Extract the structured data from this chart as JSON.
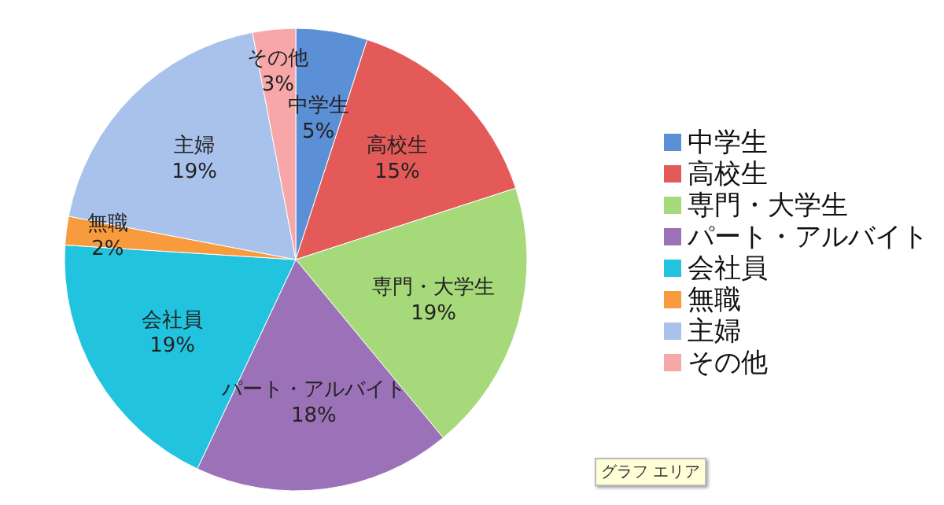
{
  "chart_data": {
    "type": "pie",
    "categories": [
      "中学生",
      "高校生",
      "専門・大学生",
      "パート・アルバイト",
      "会社員",
      "無職",
      "主婦",
      "その他"
    ],
    "values": [
      5,
      15,
      19,
      18,
      19,
      2,
      19,
      3
    ],
    "value_labels": [
      "5%",
      "15%",
      "19%",
      "18%",
      "19%",
      "2%",
      "19%",
      "3%"
    ],
    "colors": [
      "#5b8fd6",
      "#e45a58",
      "#a6d97a",
      "#9b72b8",
      "#22c3de",
      "#f89a3e",
      "#a9c2ec",
      "#f7a7a7"
    ],
    "legend": "right",
    "annotations": [
      "グラフ エリア"
    ]
  }
}
